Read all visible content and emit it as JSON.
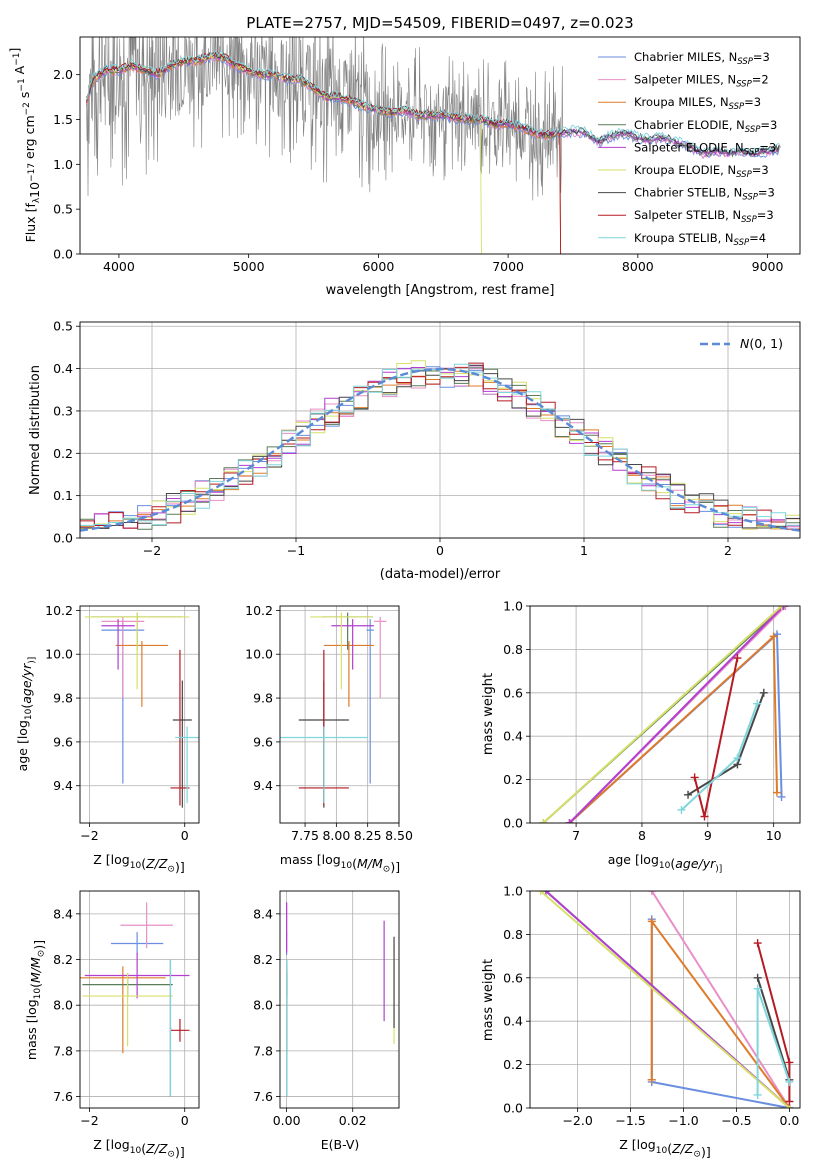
{
  "figure": {
    "title": "PLATE=2757, MJD=54509, FIBERID=0497, z=0.023"
  },
  "series": [
    {
      "name": "Chabrier MILES",
      "nssp": "3",
      "color": "#6a8ee0"
    },
    {
      "name": "Salpeter MILES",
      "nssp": "2",
      "color": "#e88fc7"
    },
    {
      "name": "Kroupa MILES",
      "nssp": "3",
      "color": "#de7b2a"
    },
    {
      "name": "Chabrier ELODIE",
      "nssp": "3",
      "color": "#5a7d5a"
    },
    {
      "name": "Salpeter ELODIE",
      "nssp": "3",
      "color": "#b23fd0"
    },
    {
      "name": "Kroupa ELODIE",
      "nssp": "3",
      "color": "#d6e06a"
    },
    {
      "name": "Chabrier STELIB",
      "nssp": "3",
      "color": "#474747"
    },
    {
      "name": "Salpeter STELIB",
      "nssp": "3",
      "color": "#b51b23"
    },
    {
      "name": "Kroupa STELIB",
      "nssp": "4",
      "color": "#7fd6dc"
    }
  ],
  "nssp_prefix": "N",
  "nssp_sub": "SSP",
  "chart_data": [
    {
      "id": "spectrum",
      "type": "line",
      "xlabel": "wavelength [Angstrom, rest frame]",
      "ylabel_parts": [
        "Flux [f",
        "λ",
        "10",
        "−17",
        " erg cm",
        "−2",
        " s",
        "−1",
        " A",
        "−1",
        "]"
      ],
      "xlim": [
        3700,
        9250
      ],
      "ylim": [
        0,
        2.42
      ],
      "xticks": [
        4000,
        5000,
        6000,
        7000,
        8000,
        9000
      ],
      "yticks": [
        0.0,
        0.5,
        1.0,
        1.5,
        2.0
      ],
      "continuum": [
        [
          3750,
          1.7
        ],
        [
          3800,
          1.95
        ],
        [
          3900,
          2.05
        ],
        [
          4000,
          2.05
        ],
        [
          4100,
          2.1
        ],
        [
          4200,
          2.05
        ],
        [
          4300,
          2.0
        ],
        [
          4400,
          2.1
        ],
        [
          4500,
          2.15
        ],
        [
          4600,
          2.15
        ],
        [
          4700,
          2.2
        ],
        [
          4800,
          2.2
        ],
        [
          4900,
          2.1
        ],
        [
          5000,
          2.05
        ],
        [
          5100,
          2.0
        ],
        [
          5200,
          2.0
        ],
        [
          5300,
          1.95
        ],
        [
          5400,
          1.95
        ],
        [
          5500,
          1.85
        ],
        [
          5600,
          1.75
        ],
        [
          5700,
          1.75
        ],
        [
          5800,
          1.7
        ],
        [
          5900,
          1.65
        ],
        [
          6000,
          1.6
        ],
        [
          6100,
          1.58
        ],
        [
          6200,
          1.6
        ],
        [
          6300,
          1.55
        ],
        [
          6400,
          1.55
        ],
        [
          6500,
          1.55
        ],
        [
          6600,
          1.52
        ],
        [
          6700,
          1.5
        ],
        [
          6800,
          1.5
        ],
        [
          6900,
          1.45
        ],
        [
          7000,
          1.45
        ],
        [
          7100,
          1.42
        ],
        [
          7200,
          1.35
        ],
        [
          7300,
          1.33
        ],
        [
          7400,
          1.35
        ],
        [
          7500,
          1.37
        ],
        [
          7600,
          1.35
        ],
        [
          7700,
          1.25
        ],
        [
          7800,
          1.32
        ],
        [
          7900,
          1.35
        ],
        [
          8000,
          1.3
        ],
        [
          8100,
          1.28
        ],
        [
          8200,
          1.3
        ],
        [
          8300,
          1.25
        ],
        [
          8400,
          1.2
        ],
        [
          8500,
          1.12
        ],
        [
          8600,
          1.15
        ],
        [
          8700,
          1.12
        ],
        [
          8800,
          1.15
        ],
        [
          8900,
          1.12
        ],
        [
          9000,
          1.15
        ],
        [
          9100,
          1.18
        ]
      ]
    },
    {
      "id": "residuals",
      "type": "bar",
      "xlabel": "(data-model)/error",
      "ylabel": "Normed distribution",
      "xlim": [
        -2.5,
        2.5
      ],
      "ylim": [
        0,
        0.51
      ],
      "xticks": [
        -2,
        -1,
        0,
        1,
        2
      ],
      "xtick_labels": [
        "−2",
        "−1",
        "0",
        "1",
        "2"
      ],
      "yticks": [
        0.0,
        0.1,
        0.2,
        0.3,
        0.4,
        0.5
      ],
      "bin_width": 0.1,
      "bin_start": -2.5,
      "reference_label_math": "N",
      "reference_label_rest": "(0, 1)",
      "reference_color": "#5b8bd6",
      "reference": {
        "mean": 0,
        "sigma": 1
      }
    },
    {
      "id": "age-Z",
      "type": "errorbar",
      "xlabel_parts": [
        "Z [log",
        "10",
        "(",
        "Z/Z",
        "⊙",
        ")]"
      ],
      "ylabel_parts": [
        "age  [log",
        "10",
        "(",
        "age/yr",
        ")]"
      ],
      "xlim": [
        -2.2,
        0.3
      ],
      "ylim": [
        9.23,
        10.22
      ],
      "xticks": [
        -2,
        0
      ],
      "xtick_labels": [
        "−2",
        "0"
      ],
      "yticks": [
        9.4,
        9.6,
        9.8,
        10.0,
        10.2
      ],
      "points": [
        {
          "s": 0,
          "x": -1.3,
          "y": 10.11,
          "xerr": 0.45,
          "yerr": [
            0.7,
            0.05
          ]
        },
        {
          "s": 1,
          "x": -1.3,
          "y": 10.15,
          "xerr": 0.45,
          "yerr": [
            0.35,
            0.02
          ]
        },
        {
          "s": 2,
          "x": -0.9,
          "y": 10.04,
          "xerr": 0.55,
          "yerr": [
            0.28,
            0.02
          ]
        },
        {
          "s": 3,
          "x": -1.0,
          "y": 10.17,
          "xerr": 0.95,
          "yerr": [
            0.15,
            0.02
          ]
        },
        {
          "s": 4,
          "x": -1.4,
          "y": 10.13,
          "xerr": 0.35,
          "yerr": [
            0.2,
            0.03
          ]
        },
        {
          "s": 5,
          "x": -1.0,
          "y": 10.17,
          "xerr": 1.1,
          "yerr": [
            0.33,
            0.02
          ]
        },
        {
          "s": 6,
          "x": -0.05,
          "y": 9.7,
          "xerr": 0.2,
          "yerr": [
            0.4,
            0.18
          ]
        },
        {
          "s": 7,
          "x": -0.1,
          "y": 9.39,
          "xerr": 0.2,
          "yerr": [
            0.08,
            0.63
          ]
        },
        {
          "s": 8,
          "x": 0.05,
          "y": 9.62,
          "xerr": 0.25,
          "yerr": [
            0.3,
            0.05
          ]
        }
      ]
    },
    {
      "id": "age-mass",
      "type": "errorbar",
      "xlabel_parts": [
        "mass [log",
        "10",
        "(",
        "M/M",
        "⊙",
        ")]"
      ],
      "xlim": [
        7.55,
        8.5
      ],
      "ylim": [
        9.23,
        10.22
      ],
      "xticks": [
        7.75,
        8.0,
        8.25,
        8.5
      ],
      "xtick_labels": [
        "7.75",
        "8.00",
        "8.25",
        "8.50"
      ],
      "yticks": [
        9.4,
        9.6,
        9.8,
        10.0,
        10.2
      ],
      "points": [
        {
          "s": 0,
          "x": 8.27,
          "y": 10.11,
          "xerr": 0.03,
          "yerr": [
            0.7,
            0.05
          ]
        },
        {
          "s": 1,
          "x": 8.35,
          "y": 10.15,
          "xerr": 0.05,
          "yerr": [
            0.35,
            0.02
          ]
        },
        {
          "s": 2,
          "x": 8.1,
          "y": 10.04,
          "xerr": 0.2,
          "yerr": [
            0.28,
            0.02
          ]
        },
        {
          "s": 3,
          "x": 8.09,
          "y": 10.17,
          "xerr": 0.2,
          "yerr": [
            0.15,
            0.02
          ]
        },
        {
          "s": 4,
          "x": 8.13,
          "y": 10.13,
          "xerr": 0.17,
          "yerr": [
            0.2,
            0.03
          ]
        },
        {
          "s": 5,
          "x": 8.04,
          "y": 10.17,
          "xerr": 0.25,
          "yerr": [
            0.33,
            0.02
          ]
        },
        {
          "s": 6,
          "x": 7.9,
          "y": 9.7,
          "xerr": 0.2,
          "yerr": [
            0.4,
            0.18
          ]
        },
        {
          "s": 7,
          "x": 7.9,
          "y": 9.39,
          "xerr": 0.2,
          "yerr": [
            0.08,
            0.63
          ]
        },
        {
          "s": 8,
          "x": 7.9,
          "y": 9.62,
          "xerr": 0.35,
          "yerr": [
            0.3,
            0.05
          ]
        }
      ]
    },
    {
      "id": "weight-age",
      "type": "line",
      "xlabel_parts": [
        "age  [log",
        "10",
        "(",
        "age/yr",
        ")]"
      ],
      "ylabel": "mass weight",
      "xlim": [
        6.3,
        10.4
      ],
      "ylim": [
        0,
        1.0
      ],
      "xticks": [
        7,
        8,
        9,
        10
      ],
      "yticks": [
        0.0,
        0.2,
        0.4,
        0.6,
        0.8,
        1.0
      ],
      "series_points": [
        {
          "s": 0,
          "x": [
            6.9,
            10.05,
            10.12
          ],
          "y": [
            0.0,
            0.87,
            0.12
          ]
        },
        {
          "s": 1,
          "x": [
            6.9,
            10.18
          ],
          "y": [
            0.0,
            1.0
          ]
        },
        {
          "s": 2,
          "x": [
            6.9,
            10.0,
            10.05
          ],
          "y": [
            0.0,
            0.86,
            0.14
          ]
        },
        {
          "s": 3,
          "x": [
            6.5,
            10.15
          ],
          "y": [
            0.0,
            1.0
          ]
        },
        {
          "s": 4,
          "x": [
            6.9,
            10.15
          ],
          "y": [
            0.0,
            1.0
          ]
        },
        {
          "s": 5,
          "x": [
            6.5,
            10.12
          ],
          "y": [
            0.0,
            1.0
          ]
        },
        {
          "s": 6,
          "x": [
            8.7,
            9.45,
            9.85
          ],
          "y": [
            0.13,
            0.27,
            0.6
          ]
        },
        {
          "s": 7,
          "x": [
            8.8,
            8.95,
            9.45
          ],
          "y": [
            0.21,
            0.03,
            0.76
          ]
        },
        {
          "s": 8,
          "x": [
            8.6,
            9.45,
            9.75
          ],
          "y": [
            0.06,
            0.3,
            0.55
          ]
        }
      ]
    },
    {
      "id": "mass-Z",
      "type": "errorbar",
      "xlabel_parts": [
        "Z [log",
        "10",
        "(",
        "Z/Z",
        "⊙",
        ")]"
      ],
      "ylabel_parts": [
        "mass [log",
        "10",
        "(",
        "M/M",
        "⊙",
        ")]"
      ],
      "xlim": [
        -2.2,
        0.3
      ],
      "ylim": [
        7.55,
        8.5
      ],
      "xticks": [
        -2,
        0
      ],
      "xtick_labels": [
        "−2",
        "0"
      ],
      "yticks": [
        7.6,
        7.8,
        8.0,
        8.2,
        8.4
      ],
      "points": [
        {
          "s": 0,
          "x": -1.0,
          "y": 8.27,
          "xerr": 0.55,
          "yerr": [
            0.05,
            0.05
          ]
        },
        {
          "s": 1,
          "x": -0.8,
          "y": 8.35,
          "xerr": 0.55,
          "yerr": [
            0.1,
            0.1
          ]
        },
        {
          "s": 2,
          "x": -1.3,
          "y": 8.12,
          "xerr": 0.9,
          "yerr": [
            0.33,
            0.05
          ]
        },
        {
          "s": 3,
          "x": -1.2,
          "y": 8.09,
          "xerr": 0.95,
          "yerr": [
            0.05,
            0.05
          ]
        },
        {
          "s": 4,
          "x": -1.0,
          "y": 8.13,
          "xerr": 1.1,
          "yerr": [
            0.1,
            0.1
          ]
        },
        {
          "s": 5,
          "x": -1.2,
          "y": 8.04,
          "xerr": 0.95,
          "yerr": [
            0.22,
            0.1
          ]
        },
        {
          "s": 6,
          "x": -0.3,
          "y": 7.9,
          "xerr": 0.02,
          "yerr": [
            0.3,
            0.3
          ]
        },
        {
          "s": 7,
          "x": -0.1,
          "y": 7.89,
          "xerr": 0.2,
          "yerr": [
            0.05,
            0.05
          ]
        },
        {
          "s": 8,
          "x": -0.3,
          "y": 7.9,
          "xerr": 0.02,
          "yerr": [
            0.3,
            0.3
          ]
        }
      ]
    },
    {
      "id": "mass-ebv",
      "type": "errorbar",
      "xlabel": "E(B-V)",
      "xlim": [
        -0.002,
        0.034
      ],
      "ylim": [
        7.55,
        8.5
      ],
      "xticks": [
        0.0,
        0.02
      ],
      "xtick_labels": [
        "0.00",
        "0.02"
      ],
      "yticks": [
        7.6,
        7.8,
        8.0,
        8.2,
        8.4
      ],
      "points": [
        {
          "s": 0,
          "x": 0.0,
          "y": 8.27,
          "xerr": 0,
          "yerr": [
            0.05,
            0.05
          ]
        },
        {
          "s": 1,
          "x": 0.0,
          "y": 8.35,
          "xerr": 0,
          "yerr": [
            0.1,
            0.1
          ]
        },
        {
          "s": 2,
          "x": 0.0,
          "y": 8.12,
          "xerr": 0,
          "yerr": [
            0.33,
            0.05
          ]
        },
        {
          "s": 3,
          "x": 0.0,
          "y": 8.09,
          "xerr": 0,
          "yerr": [
            0.05,
            0.05
          ]
        },
        {
          "s": 4,
          "x": 0.0,
          "y": 8.35,
          "xerr": 0,
          "yerr": [
            0.12,
            0.1
          ]
        },
        {
          "s": 4,
          "x": 0.0295,
          "y": 8.15,
          "xerr": 0,
          "yerr": [
            0.22,
            0.22
          ]
        },
        {
          "s": 5,
          "x": 0.0325,
          "y": 8.05,
          "xerr": 0,
          "yerr": [
            0.22,
            0.22
          ]
        },
        {
          "s": 6,
          "x": 0.0,
          "y": 7.9,
          "xerr": 0,
          "yerr": [
            0.3,
            0.3
          ]
        },
        {
          "s": 6,
          "x": 0.0325,
          "y": 8.1,
          "xerr": 0,
          "yerr": [
            0.2,
            0.2
          ]
        },
        {
          "s": 8,
          "x": 0.0,
          "y": 7.9,
          "xerr": 0,
          "yerr": [
            0.3,
            0.3
          ]
        }
      ]
    },
    {
      "id": "weight-Z",
      "type": "line",
      "xlabel_parts": [
        "Z [log",
        "10",
        "(",
        "Z/Z",
        "⊙",
        ")]"
      ],
      "ylabel": "mass weight",
      "xlim": [
        -2.45,
        0.1
      ],
      "ylim": [
        0,
        1.0
      ],
      "xticks": [
        -2.0,
        -1.5,
        -1.0,
        -0.5,
        0.0
      ],
      "xtick_labels": [
        "−2.0",
        "−1.5",
        "−1.0",
        "−0.5",
        "0.0"
      ],
      "yticks": [
        0.0,
        0.2,
        0.4,
        0.6,
        0.8,
        1.0
      ],
      "series_points": [
        {
          "s": 0,
          "x": [
            -1.3,
            0.0
          ],
          "y": [
            0.12,
            0.0
          ]
        },
        {
          "s": 0,
          "x": [
            -1.3,
            -1.3
          ],
          "y": [
            0.13,
            0.87
          ]
        },
        {
          "s": 1,
          "x": [
            -1.3,
            0.0
          ],
          "y": [
            1.0,
            0.0
          ]
        },
        {
          "s": 2,
          "x": [
            -1.3,
            -1.3,
            0.0
          ],
          "y": [
            0.13,
            0.86,
            0.0
          ]
        },
        {
          "s": 3,
          "x": [
            -2.3,
            0.0
          ],
          "y": [
            1.0,
            0.0
          ]
        },
        {
          "s": 4,
          "x": [
            -2.3,
            0.0
          ],
          "y": [
            1.0,
            0.0
          ]
        },
        {
          "s": 5,
          "x": [
            -2.35,
            0.0
          ],
          "y": [
            1.0,
            0.0
          ]
        },
        {
          "s": 6,
          "x": [
            -0.3,
            0.0
          ],
          "y": [
            0.6,
            0.13
          ]
        },
        {
          "s": 7,
          "x": [
            -0.3,
            0.0,
            0.0
          ],
          "y": [
            0.76,
            0.21,
            0.03
          ]
        },
        {
          "s": 8,
          "x": [
            -0.3,
            -0.3,
            0.0
          ],
          "y": [
            0.06,
            0.55,
            0.12
          ]
        }
      ]
    }
  ]
}
